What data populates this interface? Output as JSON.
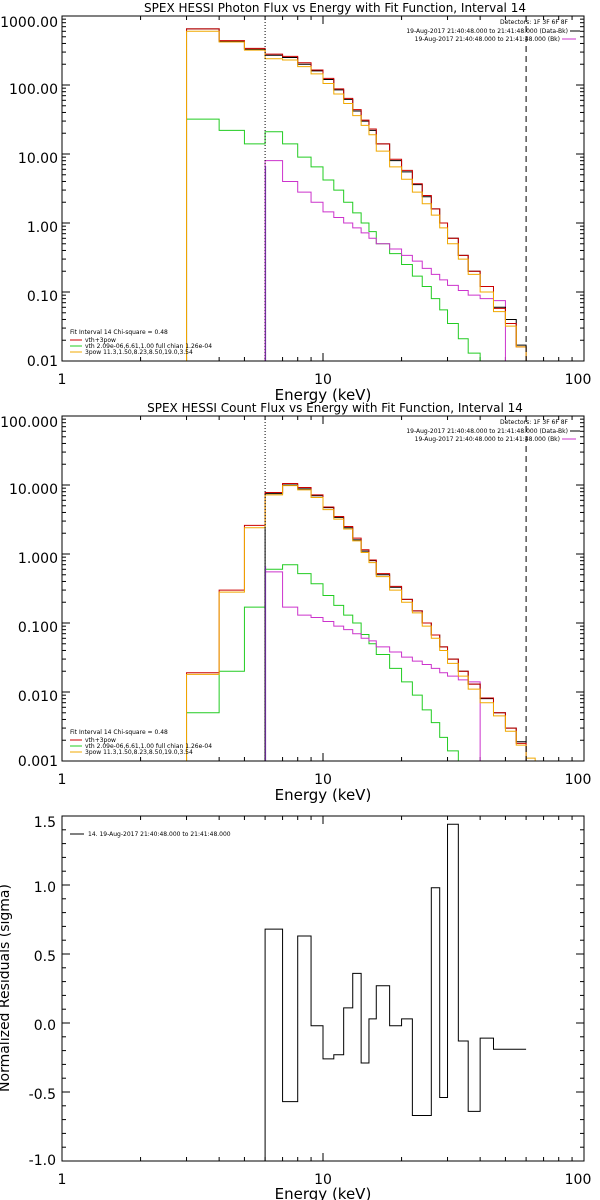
{
  "chart_data": [
    {
      "type": "line",
      "title": "SPEX HESSI Photon Flux vs Energy with Fit Function, Interval 14",
      "xlabel": "Energy (keV)",
      "ylabel": "",
      "xscale": "log",
      "yscale": "log",
      "xlim": [
        1,
        100
      ],
      "ylim": [
        0.01,
        1000
      ],
      "x_tick_labels": [
        "1",
        "10",
        "100"
      ],
      "y_tick_labels": [
        "0.01",
        "0.10",
        "1.00",
        "10.00",
        "100.00",
        "1000.00"
      ],
      "legend_right": [
        "Detectors: 1F 3F 6F 8F",
        "19-Aug-2017 21:40:48.000 to 21:41:48.000 (Data-Bk)",
        "19-Aug-2017 21:40:48.000 to 21:41:48.000 (Bk)"
      ],
      "legend_left": [
        "Fit Interval 14   Chi-square = 0.48",
        "vth+3pow",
        "vth 2.09e-06,6.61,1.00  full chian 1.26e-04",
        "3pow 11.3,1.50,8.23,8.50,19.0,3.54"
      ],
      "marker_lines": {
        "dotted": 6,
        "dashed": 60
      },
      "colors": {
        "data": "#000000",
        "total": "#cc0000",
        "fit": "#f0a800",
        "thermal": "#22cc22",
        "background": "#cc33cc"
      },
      "edges": [
        3,
        4,
        5,
        6,
        7,
        8,
        9,
        10,
        11,
        12,
        13,
        14,
        15,
        16,
        18,
        20,
        22,
        24,
        26,
        28,
        30,
        33,
        36,
        40,
        45,
        50,
        55,
        60,
        65,
        70
      ],
      "series": [
        {
          "name": "Data-Bk",
          "key": "data",
          "values": [
            650,
            430,
            330,
            270,
            250,
            200,
            160,
            120,
            85,
            62,
            42,
            30,
            22,
            14,
            8,
            5.5,
            3.6,
            2.4,
            1.6,
            1.0,
            0.6,
            0.34,
            0.2,
            0.12,
            0.06,
            0.04,
            0.017,
            null,
            null
          ]
        },
        {
          "name": "vth+3pow",
          "key": "total",
          "values": [
            650,
            440,
            340,
            280,
            260,
            210,
            165,
            125,
            88,
            64,
            44,
            31,
            23,
            14,
            8.4,
            5.8,
            3.7,
            2.5,
            1.6,
            1.0,
            0.6,
            0.34,
            0.2,
            0.12,
            0.058,
            0.035,
            0.016,
            0.0095,
            null
          ]
        },
        {
          "name": "3pow",
          "key": "fit",
          "values": [
            600,
            420,
            320,
            240,
            230,
            185,
            145,
            105,
            74,
            54,
            36,
            26,
            19,
            11,
            6.5,
            4.3,
            2.8,
            1.9,
            1.3,
            0.85,
            0.5,
            0.3,
            0.18,
            0.1,
            0.052,
            0.032,
            0.016,
            0.0095,
            null
          ]
        },
        {
          "name": "vth",
          "key": "thermal",
          "values": [
            32,
            22,
            14,
            21,
            14,
            9,
            6.5,
            4.2,
            3.0,
            2.0,
            1.4,
            1.0,
            0.75,
            0.5,
            0.36,
            0.25,
            0.17,
            0.12,
            0.08,
            0.055,
            0.035,
            0.021,
            0.013,
            0.008,
            null,
            null,
            null,
            null,
            null
          ]
        },
        {
          "name": "Bk",
          "key": "background",
          "values": [
            null,
            null,
            null,
            8,
            4.0,
            2.8,
            2.0,
            1.45,
            1.2,
            1.0,
            0.85,
            0.72,
            0.6,
            0.5,
            0.42,
            0.34,
            0.28,
            0.22,
            0.18,
            0.15,
            0.125,
            0.105,
            0.09,
            0.08,
            0.075,
            null,
            null,
            null,
            null
          ]
        }
      ]
    },
    {
      "type": "line",
      "title": "SPEX HESSI Count Flux vs Energy with Fit Function, Interval 14",
      "xlabel": "Energy (keV)",
      "ylabel": "",
      "xscale": "log",
      "yscale": "log",
      "xlim": [
        1,
        100
      ],
      "ylim": [
        0.001,
        100
      ],
      "x_tick_labels": [
        "1",
        "10",
        "100"
      ],
      "y_tick_labels": [
        "0.001",
        "0.010",
        "0.100",
        "1.000",
        "10.000",
        "100.000"
      ],
      "legend_right": [
        "Detectors: 1F 3F 6F 8F",
        "19-Aug-2017 21:40:48.000 to 21:41:48.000 (Data-Bk)",
        "19-Aug-2017 21:40:48.000 to 21:41:48.000 (Bk)"
      ],
      "legend_left": [
        "Fit Interval 14   Chi-square = 0.48",
        "vth+3pow",
        "vth 2.09e-06,6.61,1.00  full chian 1.26e-04",
        "3pow 11.3,1.50,8.23,8.50,19.0,3.54"
      ],
      "marker_lines": {
        "dotted": 6,
        "dashed": 60
      },
      "colors": {
        "data": "#000000",
        "total": "#cc0000",
        "fit": "#f0a800",
        "thermal": "#22cc22",
        "background": "#cc33cc"
      },
      "edges": [
        3,
        4,
        5,
        6,
        7,
        8,
        9,
        10,
        11,
        12,
        13,
        14,
        15,
        16,
        18,
        20,
        22,
        24,
        26,
        28,
        30,
        33,
        36,
        40,
        45,
        50,
        55,
        60,
        65,
        70,
        75
      ],
      "series": [
        {
          "name": "Data-Bk",
          "key": "data",
          "values": [
            null,
            null,
            null,
            7.5,
            10,
            8.8,
            7,
            4.7,
            3.4,
            2.4,
            1.6,
            1.1,
            0.8,
            0.5,
            0.33,
            0.22,
            0.15,
            0.1,
            0.067,
            0.045,
            0.03,
            0.02,
            0.013,
            0.008,
            0.005,
            0.003,
            0.0019,
            null,
            null,
            null
          ]
        },
        {
          "name": "vth+3pow",
          "key": "total",
          "values": [
            0.019,
            0.3,
            2.6,
            7.8,
            10.5,
            9.2,
            7.2,
            4.8,
            3.5,
            2.5,
            1.7,
            1.15,
            0.82,
            0.52,
            0.34,
            0.22,
            0.15,
            0.1,
            0.067,
            0.045,
            0.03,
            0.02,
            0.013,
            0.0082,
            0.005,
            0.003,
            0.0018,
            null,
            null,
            null
          ]
        },
        {
          "name": "vth+3pow (fit)",
          "key": "fit",
          "values": [
            0.018,
            0.28,
            2.4,
            7.2,
            9.8,
            8.5,
            6.6,
            4.4,
            3.2,
            2.3,
            1.55,
            1.05,
            0.75,
            0.47,
            0.3,
            0.2,
            0.14,
            0.09,
            0.06,
            0.04,
            0.026,
            0.017,
            0.011,
            0.007,
            0.0045,
            0.0027,
            0.0017,
            0.0011,
            0.0007,
            null
          ]
        },
        {
          "name": "vth",
          "key": "thermal",
          "values": [
            0.005,
            0.02,
            0.17,
            0.6,
            0.7,
            0.52,
            0.37,
            0.25,
            0.18,
            0.13,
            0.1,
            0.068,
            0.05,
            0.035,
            0.022,
            0.014,
            0.009,
            0.0055,
            0.0036,
            0.0022,
            0.0014,
            0.0009,
            null,
            null,
            null,
            null,
            null,
            null,
            null,
            null
          ]
        },
        {
          "name": "Bk",
          "key": "background",
          "values": [
            null,
            null,
            null,
            0.55,
            0.17,
            0.13,
            0.12,
            0.105,
            0.09,
            0.08,
            0.07,
            0.06,
            0.055,
            0.045,
            0.038,
            0.032,
            0.028,
            0.025,
            0.022,
            0.019,
            0.017,
            0.015,
            0.014,
            null,
            null,
            null,
            null,
            null,
            null,
            null
          ]
        }
      ]
    },
    {
      "type": "line",
      "title": "",
      "xlabel": "Energy (keV)",
      "ylabel": "Normalized Residuals (sigma)",
      "xscale": "log",
      "xlim": [
        1,
        100
      ],
      "ylim": [
        -1.0,
        1.5
      ],
      "x_tick_labels": [
        "1",
        "10",
        "100"
      ],
      "y_tick_labels": [
        "-1.0",
        "-0.5",
        "0.0",
        "0.5",
        "1.0",
        "1.5"
      ],
      "legend": [
        "14. 19-Aug-2017 21:40:48.000 to 21:41:48.000"
      ],
      "edges": [
        6,
        7,
        8,
        9,
        10,
        11,
        12,
        13,
        14,
        15,
        16,
        18,
        20,
        22,
        24,
        26,
        28,
        30,
        33,
        36,
        40,
        45,
        50,
        55,
        60
      ],
      "series": [
        {
          "name": "14. 19-Aug-2017 21:40:48.000 to 21:41:48.000",
          "values": [
            0.68,
            -0.57,
            0.63,
            -0.02,
            -0.26,
            -0.23,
            0.11,
            0.36,
            -0.29,
            0.03,
            0.27,
            -0.02,
            0.03,
            -0.67,
            -0.67,
            0.98,
            -0.54,
            1.44,
            -0.13,
            -0.64,
            -0.11,
            -0.19,
            -0.19,
            -0.19
          ]
        }
      ]
    }
  ]
}
